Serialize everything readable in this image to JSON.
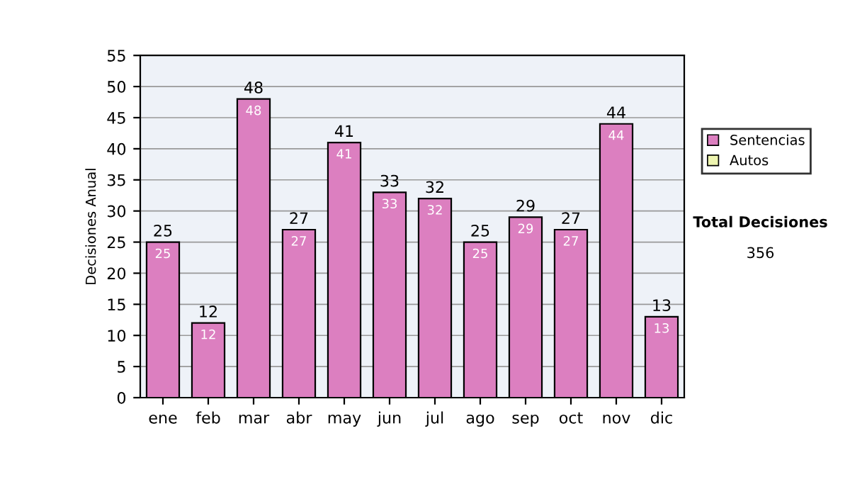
{
  "chart_data": {
    "type": "bar",
    "stacked": true,
    "ylabel": "Decisiones Anual",
    "categories": [
      "ene",
      "feb",
      "mar",
      "abr",
      "may",
      "jun",
      "jul",
      "ago",
      "sep",
      "oct",
      "nov",
      "dic"
    ],
    "series": [
      {
        "name": "Sentencias",
        "color": "#dc7fc0",
        "values": [
          25,
          12,
          48,
          27,
          41,
          33,
          32,
          25,
          29,
          27,
          44,
          13
        ],
        "value_labels": [
          "25",
          "12",
          "48",
          "27",
          "41",
          "33",
          "32",
          "25",
          "29",
          "27",
          "44",
          "13"
        ]
      },
      {
        "name": "Autos",
        "color": "#eef5b0",
        "values": [
          0,
          0,
          0,
          0,
          0,
          0,
          0,
          0,
          0,
          0,
          0,
          0
        ]
      }
    ],
    "totals": [
      "25",
      "12",
      "48",
      "27",
      "41",
      "33",
      "32",
      "25",
      "29",
      "27",
      "44",
      "13"
    ],
    "ylim": [
      0,
      55
    ],
    "yticks": [
      0,
      5,
      10,
      15,
      20,
      25,
      30,
      35,
      40,
      45,
      50,
      55
    ],
    "grid": "y",
    "legend": "right",
    "annotations": [
      "Total Decisiones",
      "356"
    ]
  }
}
